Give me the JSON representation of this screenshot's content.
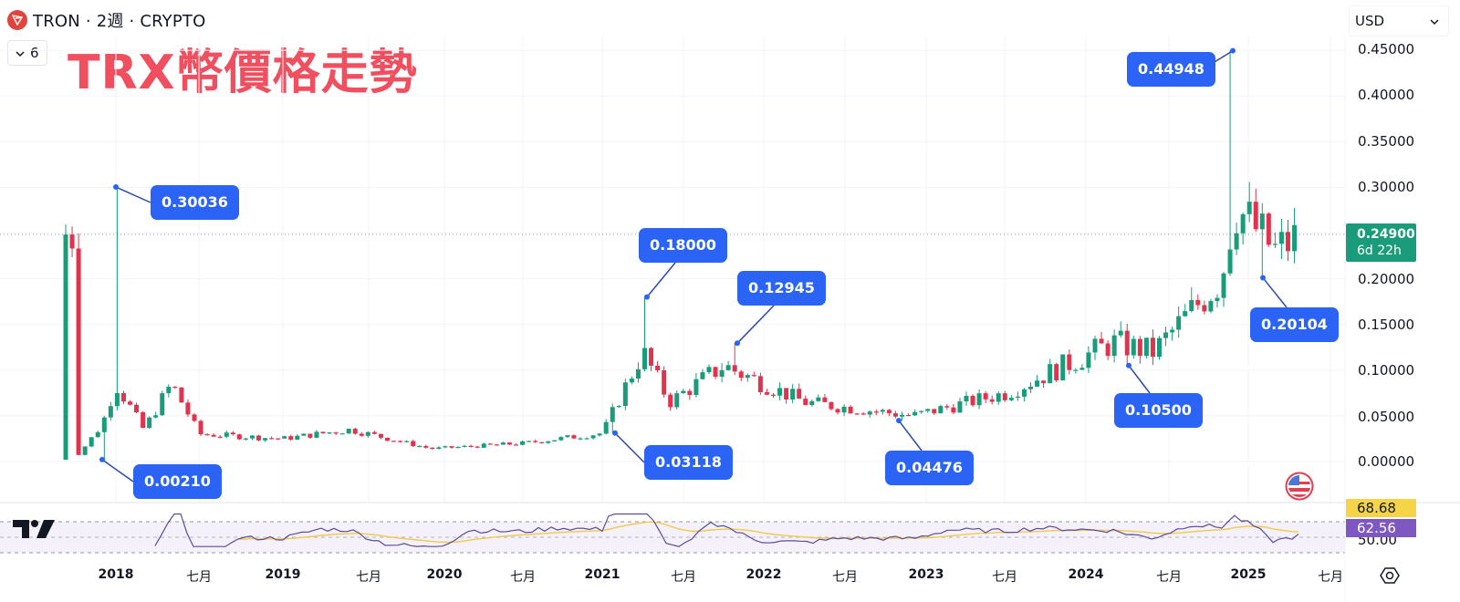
{
  "header": {
    "symbol_title": "TRON · 2週 · CRYPTO",
    "collapse_count": "6",
    "overlay_title": "TRX幣價格走勢",
    "currency": "USD"
  },
  "colors": {
    "up": "#1a9c7a",
    "down": "#e0334d",
    "callout": "#2b64f5",
    "title": "#ef4f5f",
    "rsi_line": "#7e57c2",
    "rsi_ma": "#f2c94c",
    "price_tag": "#1a9c7a"
  },
  "price_axis": {
    "labels": [
      "0.45000",
      "0.40000",
      "0.35000",
      "0.30000",
      "0.20000",
      "0.15000",
      "0.10000",
      "0.05000",
      "0.00000"
    ]
  },
  "current_price": {
    "value": "0.24900",
    "countdown": "6d 22h"
  },
  "callouts": [
    {
      "label": "0.30036"
    },
    {
      "label": "0.00210"
    },
    {
      "label": "0.18000"
    },
    {
      "label": "0.03118"
    },
    {
      "label": "0.12945"
    },
    {
      "label": "0.04476"
    },
    {
      "label": "0.10500"
    },
    {
      "label": "0.44948"
    },
    {
      "label": "0.20104"
    }
  ],
  "time_axis": {
    "labels": [
      "2018",
      "七月",
      "2019",
      "七月",
      "2020",
      "七月",
      "2021",
      "七月",
      "2022",
      "七月",
      "2023",
      "七月",
      "2024",
      "七月",
      "2025",
      "七月"
    ]
  },
  "rsi": {
    "value": "62.56",
    "ma_value": "68.68",
    "lower_level": "50.00"
  },
  "chart_data": {
    "type": "candlestick",
    "title": "TRON · 2週 · CRYPTO — TRX幣價格走勢",
    "xlabel": "",
    "ylabel": "USD",
    "ylim": [
      0,
      0.45
    ],
    "x_ticks": [
      "2018",
      "七月",
      "2019",
      "七月",
      "2020",
      "七月",
      "2021",
      "七月",
      "2022",
      "七月",
      "2023",
      "七月",
      "2024",
      "七月",
      "2025",
      "七月"
    ],
    "y_ticks": [
      0.0,
      0.05,
      0.1,
      0.15,
      0.2,
      0.25,
      0.3,
      0.35,
      0.4,
      0.45
    ],
    "grid": true,
    "annotations": [
      {
        "label": "0.30036",
        "type": "high",
        "date": "2018-01"
      },
      {
        "label": "0.00210",
        "type": "low",
        "date": "2017-12"
      },
      {
        "label": "0.18000",
        "type": "high",
        "date": "2021-04"
      },
      {
        "label": "0.03118",
        "type": "low",
        "date": "2021-01"
      },
      {
        "label": "0.12945",
        "type": "high",
        "date": "2021-11"
      },
      {
        "label": "0.04476",
        "type": "low",
        "date": "2022-12"
      },
      {
        "label": "0.10500",
        "type": "low",
        "date": "2024-04"
      },
      {
        "label": "0.44948",
        "type": "high",
        "date": "2024-12"
      },
      {
        "label": "0.20104",
        "type": "low",
        "date": "2025-03"
      }
    ],
    "current_price": 0.249,
    "series_anchor_points": [
      {
        "date": "2017-10",
        "close": 0.002
      },
      {
        "date": "2017-12",
        "close": 0.04
      },
      {
        "date": "2018-01",
        "close": 0.085
      },
      {
        "date": "2018-03",
        "close": 0.035
      },
      {
        "date": "2018-05",
        "close": 0.085
      },
      {
        "date": "2018-07",
        "close": 0.03
      },
      {
        "date": "2019-01",
        "close": 0.025
      },
      {
        "date": "2019-06",
        "close": 0.035
      },
      {
        "date": "2019-12",
        "close": 0.014
      },
      {
        "date": "2020-07",
        "close": 0.02
      },
      {
        "date": "2021-01",
        "close": 0.031
      },
      {
        "date": "2021-04",
        "close": 0.12
      },
      {
        "date": "2021-06",
        "close": 0.065
      },
      {
        "date": "2021-10",
        "close": 0.105
      },
      {
        "date": "2022-04",
        "close": 0.065
      },
      {
        "date": "2022-12",
        "close": 0.05
      },
      {
        "date": "2023-07",
        "close": 0.075
      },
      {
        "date": "2024-03",
        "close": 0.13
      },
      {
        "date": "2024-06",
        "close": 0.12
      },
      {
        "date": "2024-11",
        "close": 0.2
      },
      {
        "date": "2024-12",
        "close": 0.28
      },
      {
        "date": "2025-03",
        "close": 0.23
      },
      {
        "date": "2025-05",
        "close": 0.249
      }
    ],
    "rsi": {
      "value": 62.56,
      "ma": 68.68,
      "levels": [
        70,
        50,
        30
      ]
    }
  }
}
